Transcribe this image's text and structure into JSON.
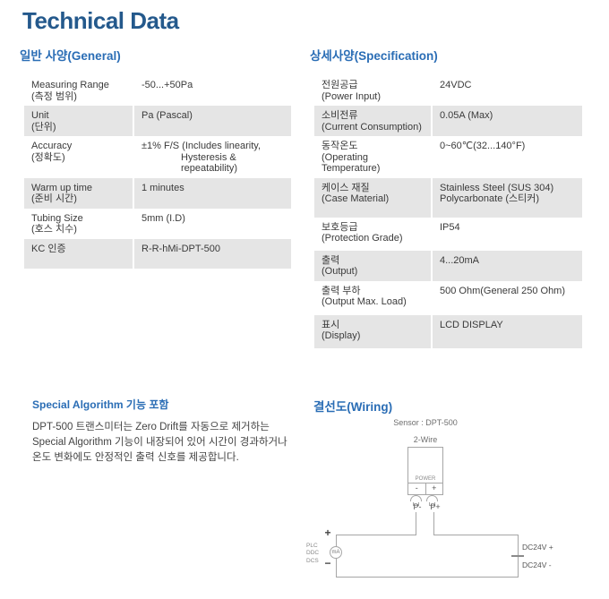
{
  "page": {
    "title": "Technical Data"
  },
  "colors": {
    "title": "#24598c",
    "section_heading": "#2a6db5",
    "row_gray": "#e5e5e5"
  },
  "general": {
    "title": "일반 사양(General)",
    "rows": [
      {
        "label": "Measuring Range",
        "label2": "(측정 범위)",
        "value": "-50...+50Pa"
      },
      {
        "label": "Unit",
        "label2": "(단위)",
        "value": "Pa (Pascal)"
      },
      {
        "label": "Accuracy",
        "label2": "(정확도)",
        "value": "±1% F/S (Includes linearity,",
        "value2": "Hysteresis & repeatability)",
        "indent2": true
      },
      {
        "label": "Warm up time",
        "label2": "(준비 시간)",
        "value": "1 minutes"
      },
      {
        "label": "Tubing Size",
        "label2": "(호스 치수)",
        "value": "5mm (I.D)"
      },
      {
        "label": "KC 인증",
        "value": "R-R-hMi-DPT-500"
      }
    ]
  },
  "specification": {
    "title": "상세사양(Specification)",
    "rows": [
      {
        "label": "전원공급",
        "label2": "(Power Input)",
        "value": "24VDC"
      },
      {
        "label": "소비전류",
        "label2": "(Current Consumption)",
        "value": "0.05A (Max)"
      },
      {
        "label": "동작온도",
        "label2": "(Operating Temperature)",
        "value": "0~60℃(32...140°F)"
      },
      {
        "label": "케이스 재질",
        "label2": "(Case Material)",
        "value": "Stainless Steel (SUS 304)",
        "value2": "Polycarbonate (스티커)"
      },
      {
        "label": "보호등급",
        "label2": "(Protection Grade)",
        "value": "IP54"
      },
      {
        "label": "출력",
        "label2": "(Output)",
        "value": "4...20mA"
      },
      {
        "label": "출력 부하",
        "label2": "(Output Max. Load)",
        "value": "500 Ohm(General 250 Ohm)"
      },
      {
        "label": "표시",
        "label2": "(Display)",
        "value": "LCD DISPLAY"
      }
    ]
  },
  "algorithm": {
    "title": "Special Algorithm 기능 포함",
    "lines": [
      "DPT-500 트랜스미터는 Zero Drift를 자동으로 제거하는",
      "Special Algorithm 기능이 내장되어 있어 시간이 경과하거나",
      "온도 변화에도 안정적인 출력 신호를 제공합니다."
    ]
  },
  "wiring": {
    "title": "결선도(Wiring)",
    "sensor_label": "Sensor : DPT-500",
    "wire_type": "2-Wire",
    "power_label": "POWER",
    "terminal_minus": "-",
    "terminal_plus": "+",
    "pin_minus": "P-",
    "pin_plus": "P+",
    "meter_label": "mA",
    "meter_plus": "+",
    "meter_minus": "−",
    "controllers": [
      "PLC",
      "DDC",
      "DCS"
    ],
    "supply_plus": "DC24V +",
    "supply_minus": "DC24V -"
  }
}
